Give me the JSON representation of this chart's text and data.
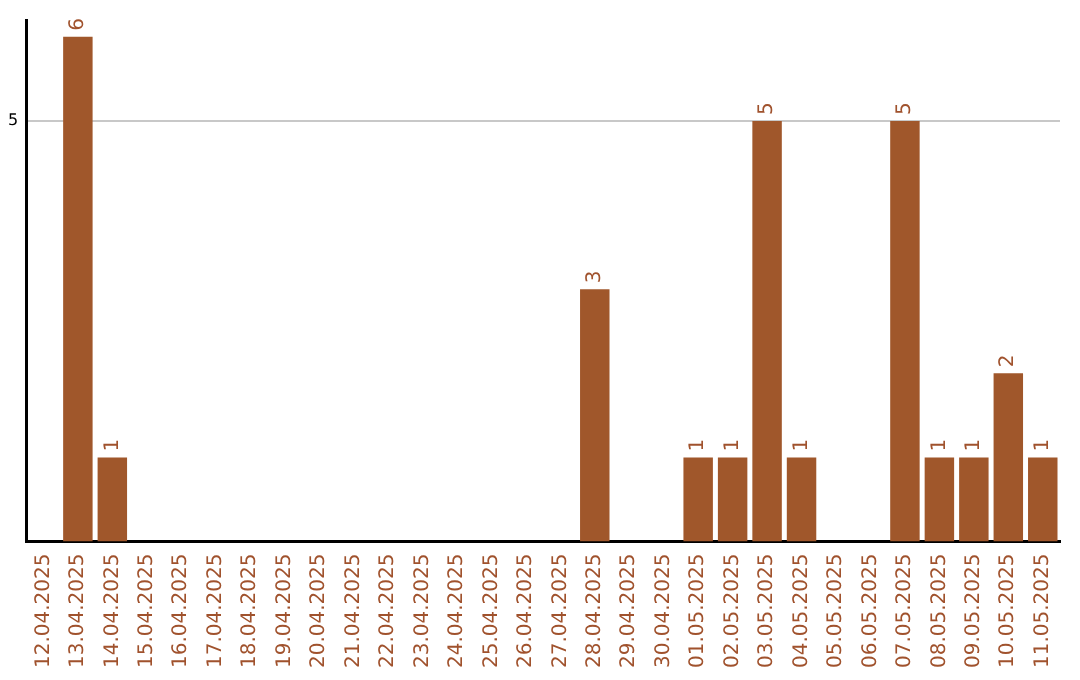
{
  "chart_data": {
    "type": "bar",
    "categories": [
      "12.04.2025",
      "13.04.2025",
      "14.04.2025",
      "15.04.2025",
      "16.04.2025",
      "17.04.2025",
      "18.04.2025",
      "19.04.2025",
      "20.04.2025",
      "21.04.2025",
      "22.04.2025",
      "23.04.2025",
      "24.04.2025",
      "25.04.2025",
      "26.04.2025",
      "27.04.2025",
      "28.04.2025",
      "29.04.2025",
      "30.04.2025",
      "01.05.2025",
      "02.05.2025",
      "03.05.2025",
      "04.05.2025",
      "05.05.2025",
      "06.05.2025",
      "07.05.2025",
      "08.05.2025",
      "09.05.2025",
      "10.05.2025",
      "11.05.2025"
    ],
    "values": [
      0,
      6,
      1,
      0,
      0,
      0,
      0,
      0,
      0,
      0,
      0,
      0,
      0,
      0,
      0,
      0,
      3,
      0,
      0,
      1,
      1,
      5,
      1,
      0,
      0,
      5,
      1,
      1,
      2,
      1
    ],
    "value_labels": [
      null,
      "6",
      "1",
      null,
      null,
      null,
      null,
      null,
      null,
      null,
      null,
      null,
      null,
      null,
      null,
      null,
      "3",
      null,
      null,
      "1",
      "1",
      "5",
      "1",
      null,
      null,
      "5",
      "1",
      "1",
      "2",
      "1"
    ],
    "color": "#a0572b",
    "ylim": [
      0,
      6.2
    ],
    "yticks": [
      5
    ],
    "grid": "y",
    "legend": false
  }
}
